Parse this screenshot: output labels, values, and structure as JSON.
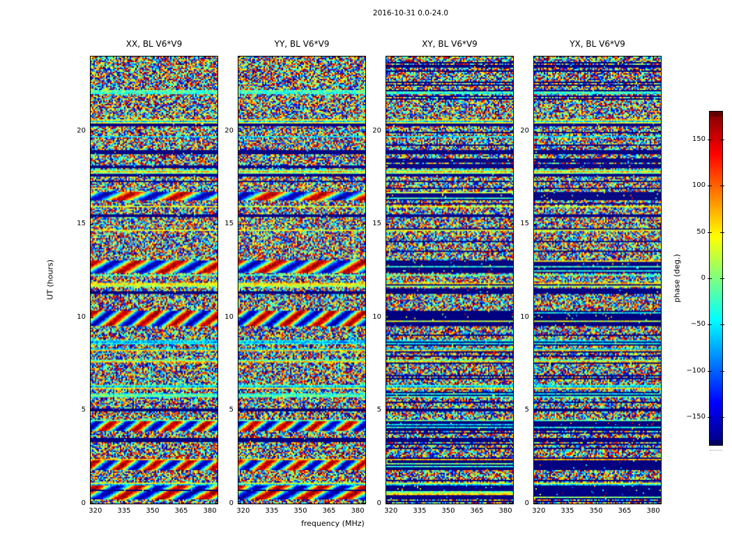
{
  "figure": {
    "suptitle": "2016-10-31 0.0-24.0",
    "xlabel": "frequency (MHz)",
    "ylabel": "UT (hours)",
    "background_color": "#ffffff",
    "text_color": "#000000"
  },
  "chart_data": {
    "type": "heatmap",
    "title": "2016-10-31 0.0-24.0",
    "xlabel": "frequency (MHz)",
    "ylabel": "UT (hours)",
    "panels": [
      {
        "id": "xx",
        "pol": "XX",
        "title": "XX, BL V6*V9"
      },
      {
        "id": "yy",
        "pol": "YY",
        "title": "YY, BL V6*V9"
      },
      {
        "id": "xy",
        "pol": "XY",
        "title": "XY, BL V6*V9"
      },
      {
        "id": "yx",
        "pol": "YX",
        "title": "YX, BL V6*V9"
      }
    ],
    "x_ticks": [
      320,
      335,
      350,
      365,
      380
    ],
    "x_range": [
      317.5,
      384
    ],
    "y_ticks": [
      0,
      5,
      10,
      15,
      20
    ],
    "y_range": [
      0,
      24
    ],
    "grid": false,
    "colormap": "jet",
    "colorbar": {
      "label": "phase (deg.)",
      "ticks": [
        -150,
        -100,
        -50,
        0,
        50,
        100,
        150
      ],
      "range": [
        -180,
        180
      ],
      "position": "right"
    },
    "seed": 73,
    "features": {
      "noise_pattern": "per-channel random phase speckle (full -180..180 range) in all panels",
      "flagged_rows": "dark navy horizontal stripes (flagged integrations) aligned in time across panels, denser in XY/YX",
      "fringe_bands_hours": [
        [
          0.25,
          0.95
        ],
        [
          1.8,
          2.35
        ],
        [
          3.9,
          4.45
        ],
        [
          9.55,
          10.35
        ],
        [
          12.35,
          13.05
        ],
        [
          16.3,
          16.75
        ]
      ],
      "fringe_cycles": [
        3,
        4,
        4,
        4,
        3,
        2.5
      ],
      "fringe_panels": [
        "XX",
        "YY"
      ],
      "cross_hands_in_fringe_bands": "mostly flagged navy"
    }
  }
}
